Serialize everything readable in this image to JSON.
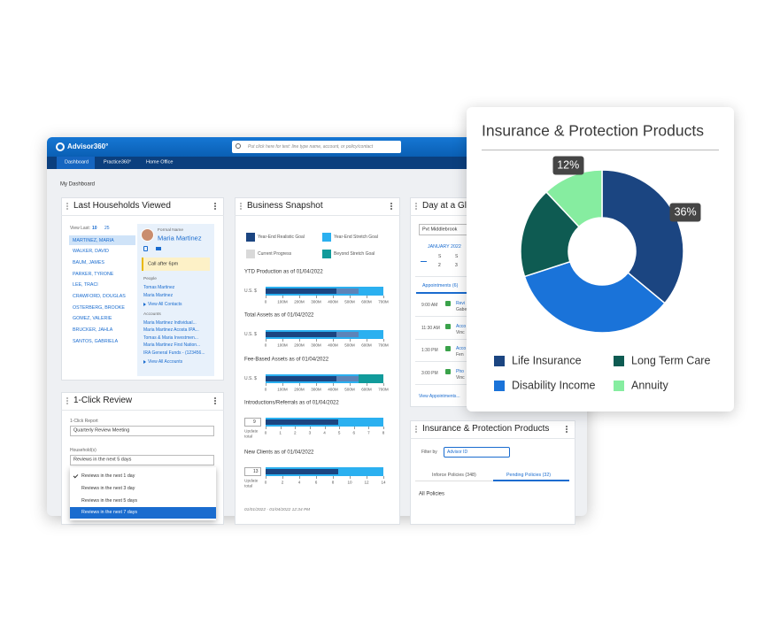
{
  "header": {
    "brand": "Advisor360°",
    "search_placeholder": "Put click here for text: line type name, account, or policy/contact",
    "tabs": [
      "Dashboard",
      "Practice360°",
      "Home Office"
    ]
  },
  "breadcrumb": "My Dashboard",
  "households": {
    "title": "Last Households Viewed",
    "view_last_label": "View Last:",
    "view_last_options": [
      "10",
      "25"
    ],
    "names": [
      "MARTINEZ, MARIA",
      "WALKER, DAVID",
      "BAUM, JAMES",
      "PARKER, TYRONE",
      "LEE, TRACI",
      "CRAWFORD, DOUGLAS",
      "OSTERBERG, BROOKE",
      "GOMEZ, VALERIE",
      "BRUCKER, JAHLA",
      "SANTOS, GABRIELA"
    ],
    "contact": {
      "formal_name_label": "Formal Name",
      "name": "Maria Martinez",
      "note": "Call after 6pm",
      "people_label": "People",
      "people": [
        "Tomas Martinez",
        "Maria Martinez"
      ],
      "view_all_contacts": "View All Contacts",
      "accounts_label": "Accounts",
      "accounts": [
        "Maria Martinez Individual...",
        "Maria Martinez Acosta IPA...",
        "Tomas & Maria Investmen...",
        "Maria Martinez First Nation...",
        "IRA General Funds - (123456..."
      ],
      "view_all_accounts": "View All Accounts"
    }
  },
  "snapshot": {
    "title": "Business Snapshot",
    "legend": [
      "Year-End Realistic Goal",
      "Year-End Stretch Goal",
      "Current Progress",
      "Beyond Stretch Goal"
    ],
    "charts": [
      {
        "title": "YTD Production as of 01/04/2022",
        "unit": "U.S. $",
        "ticks": [
          "0",
          "100M",
          "200M",
          "300M",
          "400M",
          "500M",
          "600M",
          "700M"
        ]
      },
      {
        "title": "Total Assets as of 01/04/2022",
        "unit": "U.S. $",
        "ticks": [
          "0",
          "100M",
          "200M",
          "300M",
          "400M",
          "500M",
          "600M",
          "700M"
        ]
      },
      {
        "title": "Fee-Based Assets as of 01/04/2022",
        "unit": "U.S. $",
        "ticks": [
          "0",
          "100M",
          "200M",
          "300M",
          "400M",
          "500M",
          "600M",
          "700M"
        ]
      },
      {
        "title": "Introductions/Referrals as of 01/04/2022",
        "input": "9",
        "input_label": "Update total",
        "ticks": [
          "0",
          "1",
          "2",
          "3",
          "4",
          "5",
          "6",
          "7",
          "8"
        ]
      },
      {
        "title": "New Clients as of 01/04/2022",
        "input": "13",
        "input_label": "Update total",
        "ticks": [
          "0",
          "2",
          "4",
          "6",
          "8",
          "10",
          "12",
          "14"
        ]
      }
    ],
    "footer": "01/01/2022 - 01/04/2022 12:34 PM"
  },
  "day": {
    "title": "Day at a Glance",
    "location": "Pvt Middlebrook",
    "month": "JANUARY 2022",
    "weekdays": [
      "S",
      "S"
    ],
    "days": [
      "2",
      "3"
    ],
    "tab": "Appointments (6)",
    "appointments": [
      {
        "time": "9:00 AM",
        "text": "Revi",
        "sub": "Gabe"
      },
      {
        "time": "11:30 AM",
        "text": "Acco",
        "sub": "Vinc"
      },
      {
        "time": "1:30 PM",
        "text": "Acco",
        "sub": "Fen"
      },
      {
        "time": "3:00 PM",
        "text": "Pho",
        "sub": "Vinc"
      }
    ],
    "view_all": "View Appointments..."
  },
  "review": {
    "title": "1-Click Review",
    "report_label": "1-Click Report",
    "report": "Quarterly Review Meeting",
    "households_label": "Household(s)",
    "households_value": "Reviews in the next 5 days",
    "options": [
      "Reviews in the next 1 day",
      "Reviews in the next 3 day",
      "Reviews in the next 5 days",
      "Reviews in the next 7 days"
    ]
  },
  "insurance_panel": {
    "title": "Insurance & Protection Products",
    "filter_label": "Filter by",
    "filter_value": "Advisor ID",
    "tabs": [
      "Inforce Policies (348)",
      "Pending Policies (32)"
    ],
    "all_policies": "All Policies"
  },
  "chart_data": {
    "type": "pie",
    "title": "Insurance & Protection Products",
    "categories": [
      "Life Insurance",
      "Disability Income",
      "Long Term Care",
      "Annuity"
    ],
    "values": [
      36,
      34,
      18,
      12
    ],
    "value_labels": [
      "36%",
      null,
      null,
      "12%"
    ],
    "colors": [
      "#1b4581",
      "#1a73d9",
      "#0e5b52",
      "#86eda0"
    ],
    "donut": true
  }
}
